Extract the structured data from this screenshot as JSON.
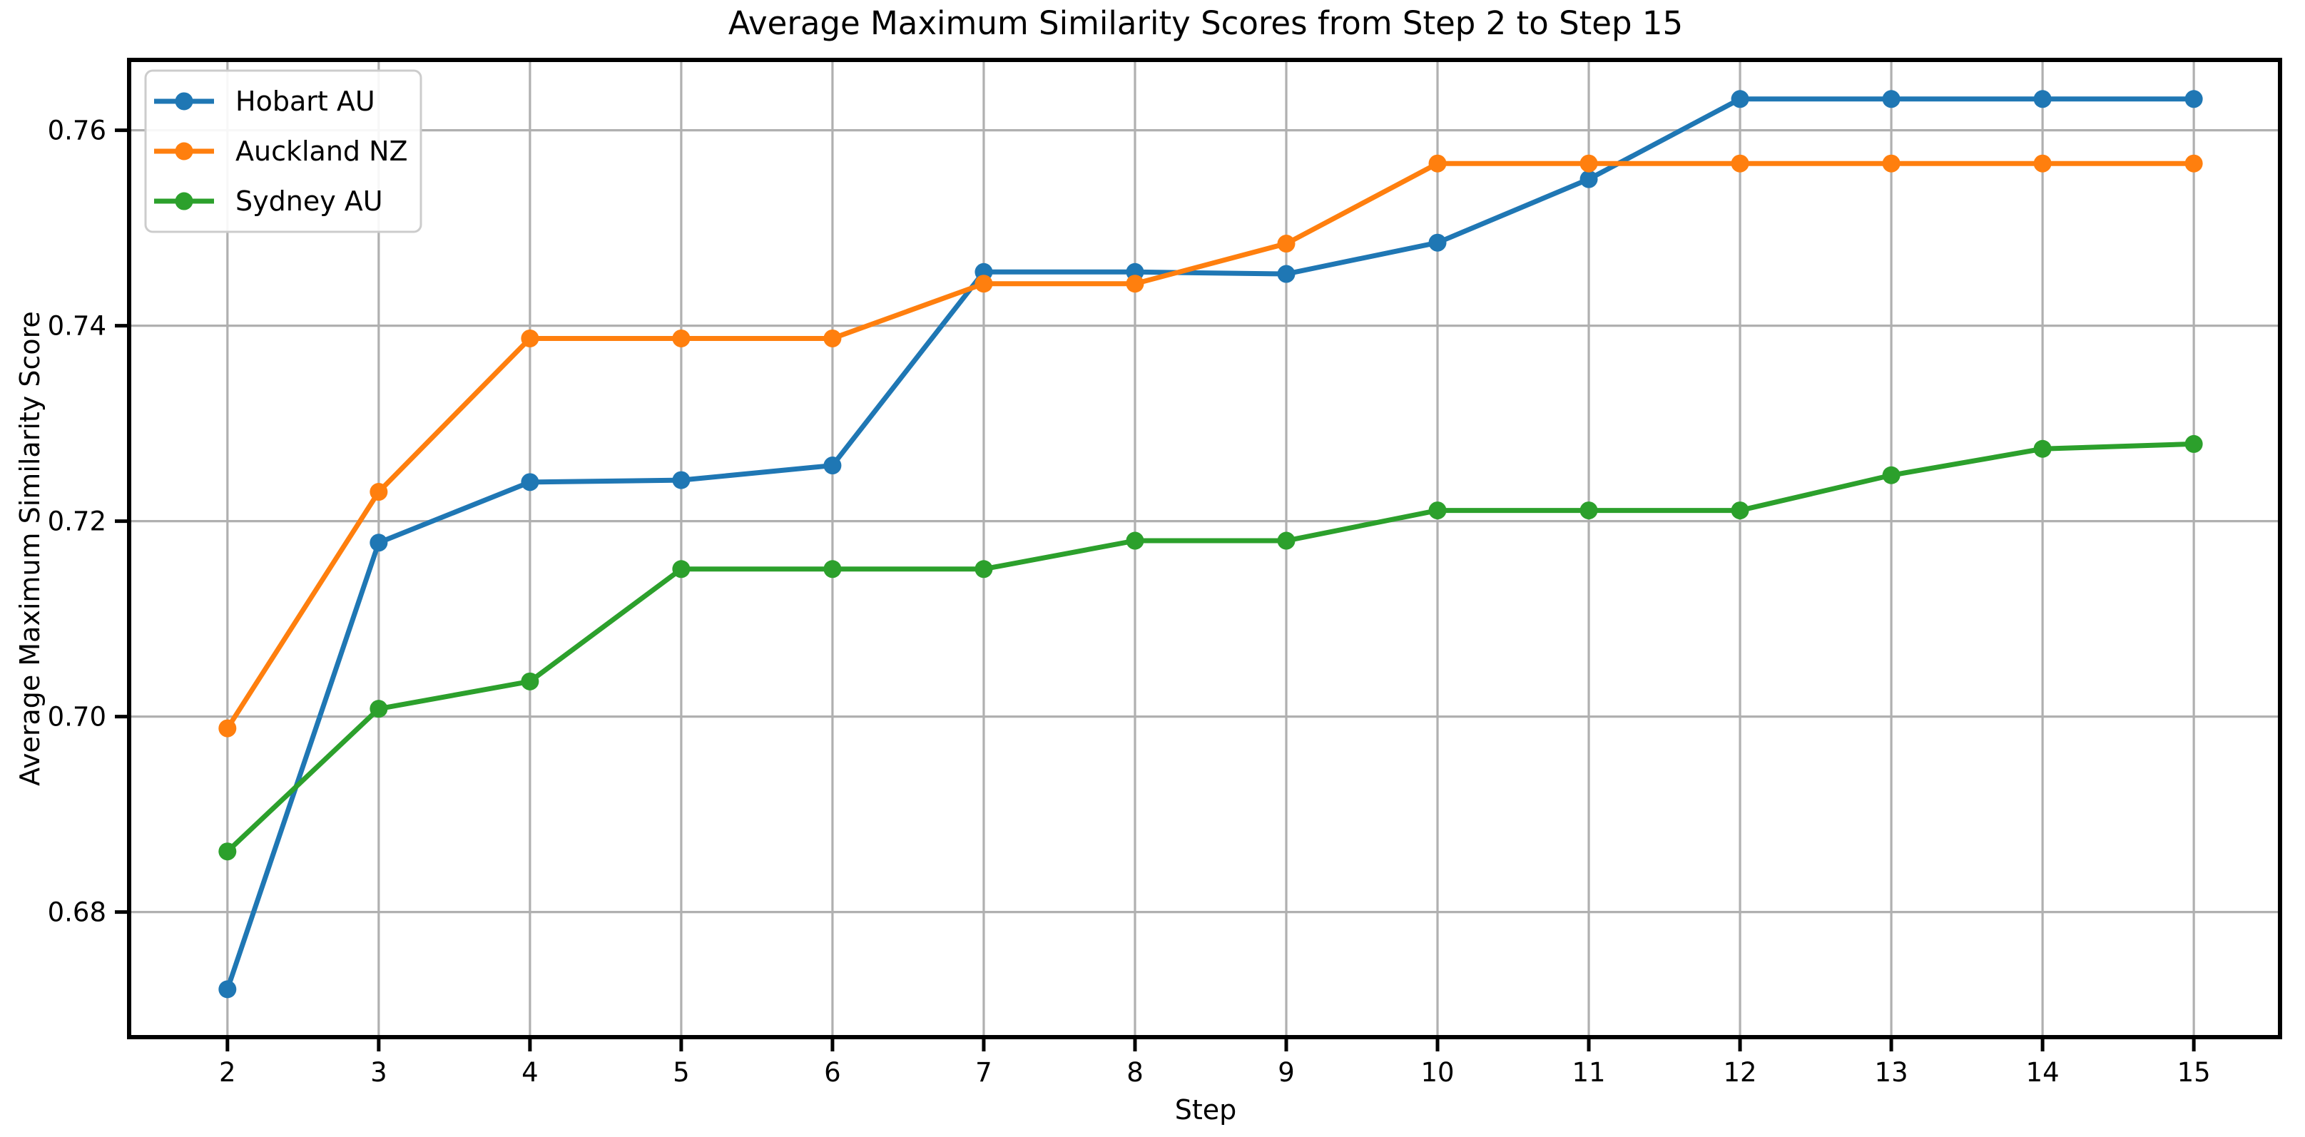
{
  "figure": {
    "title": "Average Maximum Similarity Scores from Step 2 to Step 15",
    "xlabel": "Step",
    "ylabel": "Average Maximum Similarity Score"
  },
  "legend": {
    "position": "upper left",
    "items": [
      "Hobart AU",
      "Auckland NZ",
      "Sydney AU"
    ]
  },
  "colors": {
    "hobart": "#1f77b4",
    "auckland": "#ff7f0e",
    "sydney": "#2ca02c",
    "grid": "#b0b0b0",
    "spine": "#000000",
    "legend_border": "#cccccc",
    "background": "#ffffff"
  },
  "chart_data": {
    "type": "line",
    "title": "Average Maximum Similarity Scores from Step 2 to Step 15",
    "xlabel": "Step",
    "ylabel": "Average Maximum Similarity Score",
    "x": [
      2,
      3,
      4,
      5,
      6,
      7,
      8,
      9,
      10,
      11,
      12,
      13,
      14,
      15
    ],
    "x_tick_labels": [
      "2",
      "3",
      "4",
      "5",
      "6",
      "7",
      "8",
      "9",
      "10",
      "11",
      "12",
      "13",
      "14",
      "15"
    ],
    "y_tick_labels": [
      "0.68",
      "0.70",
      "0.72",
      "0.74",
      "0.76"
    ],
    "y_tick_values": [
      0.68,
      0.7,
      0.72,
      0.74,
      0.76
    ],
    "xlim": [
      1.35,
      15.57
    ],
    "ylim": [
      0.6672,
      0.7672
    ],
    "grid": true,
    "legend_position": "upper left",
    "marker": "o",
    "series": [
      {
        "name": "Hobart AU",
        "color": "#1f77b4",
        "values": [
          0.6721,
          0.7178,
          0.724,
          0.7242,
          0.7257,
          0.7455,
          0.7455,
          0.7453,
          0.7485,
          0.755,
          0.7632,
          0.7632,
          0.7632,
          0.7632
        ]
      },
      {
        "name": "Auckland NZ",
        "color": "#ff7f0e",
        "values": [
          0.6988,
          0.723,
          0.7387,
          0.7387,
          0.7387,
          0.7443,
          0.7443,
          0.7484,
          0.7566,
          0.7566,
          0.7566,
          0.7566,
          0.7566,
          0.7566
        ]
      },
      {
        "name": "Sydney AU",
        "color": "#2ca02c",
        "values": [
          0.6862,
          0.7008,
          0.7036,
          0.7151,
          0.7151,
          0.7151,
          0.718,
          0.718,
          0.7211,
          0.7211,
          0.7211,
          0.7247,
          0.7274,
          0.7279
        ]
      }
    ]
  }
}
